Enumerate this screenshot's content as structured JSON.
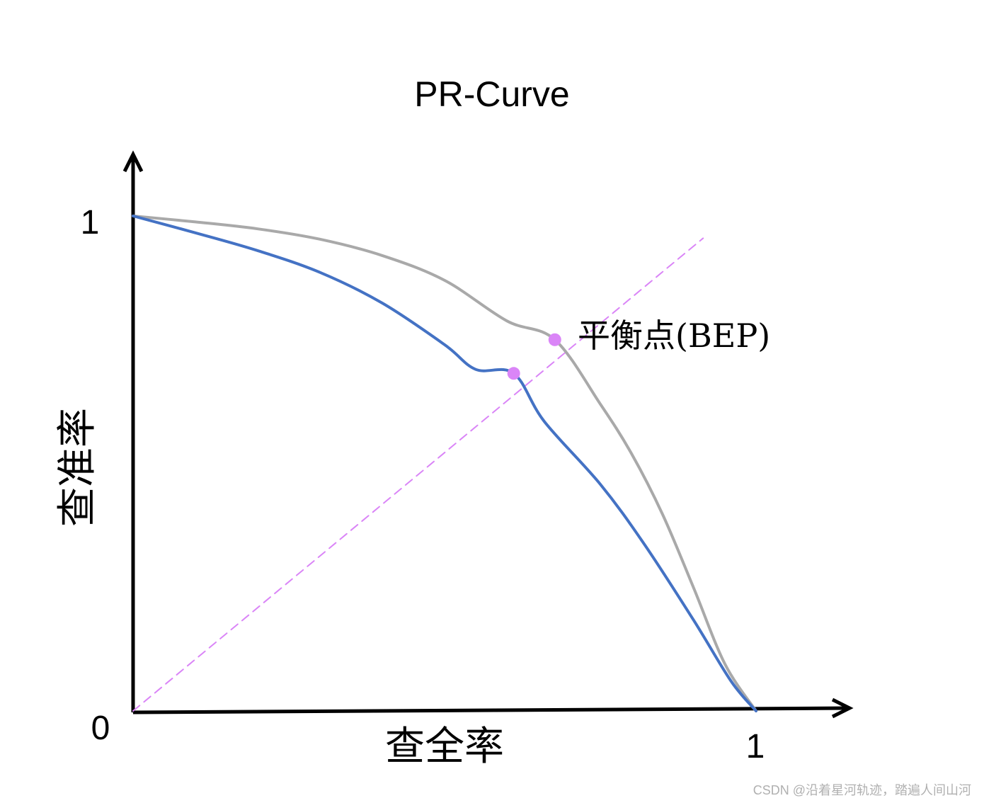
{
  "chart_data": {
    "type": "line",
    "title": "PR-Curve",
    "xlabel": "查全率",
    "ylabel": "查准率",
    "xlim": [
      0,
      1
    ],
    "ylim": [
      0,
      1
    ],
    "x_ticks": [
      "0",
      "1"
    ],
    "y_ticks": [
      "1"
    ],
    "annotation": "平衡点(BEP)",
    "series": [
      {
        "color": "#4472c4",
        "points": [
          [
            0,
            1.0
          ],
          [
            0.1,
            0.966
          ],
          [
            0.2,
            0.93
          ],
          [
            0.3,
            0.886
          ],
          [
            0.4,
            0.824
          ],
          [
            0.5,
            0.74
          ],
          [
            0.55,
            0.69
          ],
          [
            0.611,
            0.682
          ],
          [
            0.66,
            0.585
          ],
          [
            0.75,
            0.458
          ],
          [
            0.82,
            0.338
          ],
          [
            0.9,
            0.183
          ],
          [
            0.96,
            0.06
          ],
          [
            1.0,
            0.0
          ]
        ]
      },
      {
        "color": "#a9a9a9",
        "points": [
          [
            0,
            1.0
          ],
          [
            0.1,
            0.988
          ],
          [
            0.2,
            0.974
          ],
          [
            0.3,
            0.953
          ],
          [
            0.4,
            0.92
          ],
          [
            0.5,
            0.87
          ],
          [
            0.6,
            0.788
          ],
          [
            0.677,
            0.75
          ],
          [
            0.75,
            0.62
          ],
          [
            0.8,
            0.52
          ],
          [
            0.85,
            0.397
          ],
          [
            0.9,
            0.248
          ],
          [
            0.95,
            0.095
          ],
          [
            1.0,
            0.0
          ]
        ]
      },
      {
        "style": "dashed",
        "color": "#da85f7",
        "points": [
          [
            0,
            0
          ],
          [
            0.915,
            0.955
          ]
        ]
      }
    ],
    "bep_points": [
      {
        "x": 0.611,
        "y": 0.682,
        "color": "#da85f7"
      },
      {
        "x": 0.677,
        "y": 0.75,
        "color": "#da85f7"
      }
    ],
    "axis_color": "#000000"
  },
  "watermark": "CSDN @沿着星河轨迹，踏遍人间山河"
}
